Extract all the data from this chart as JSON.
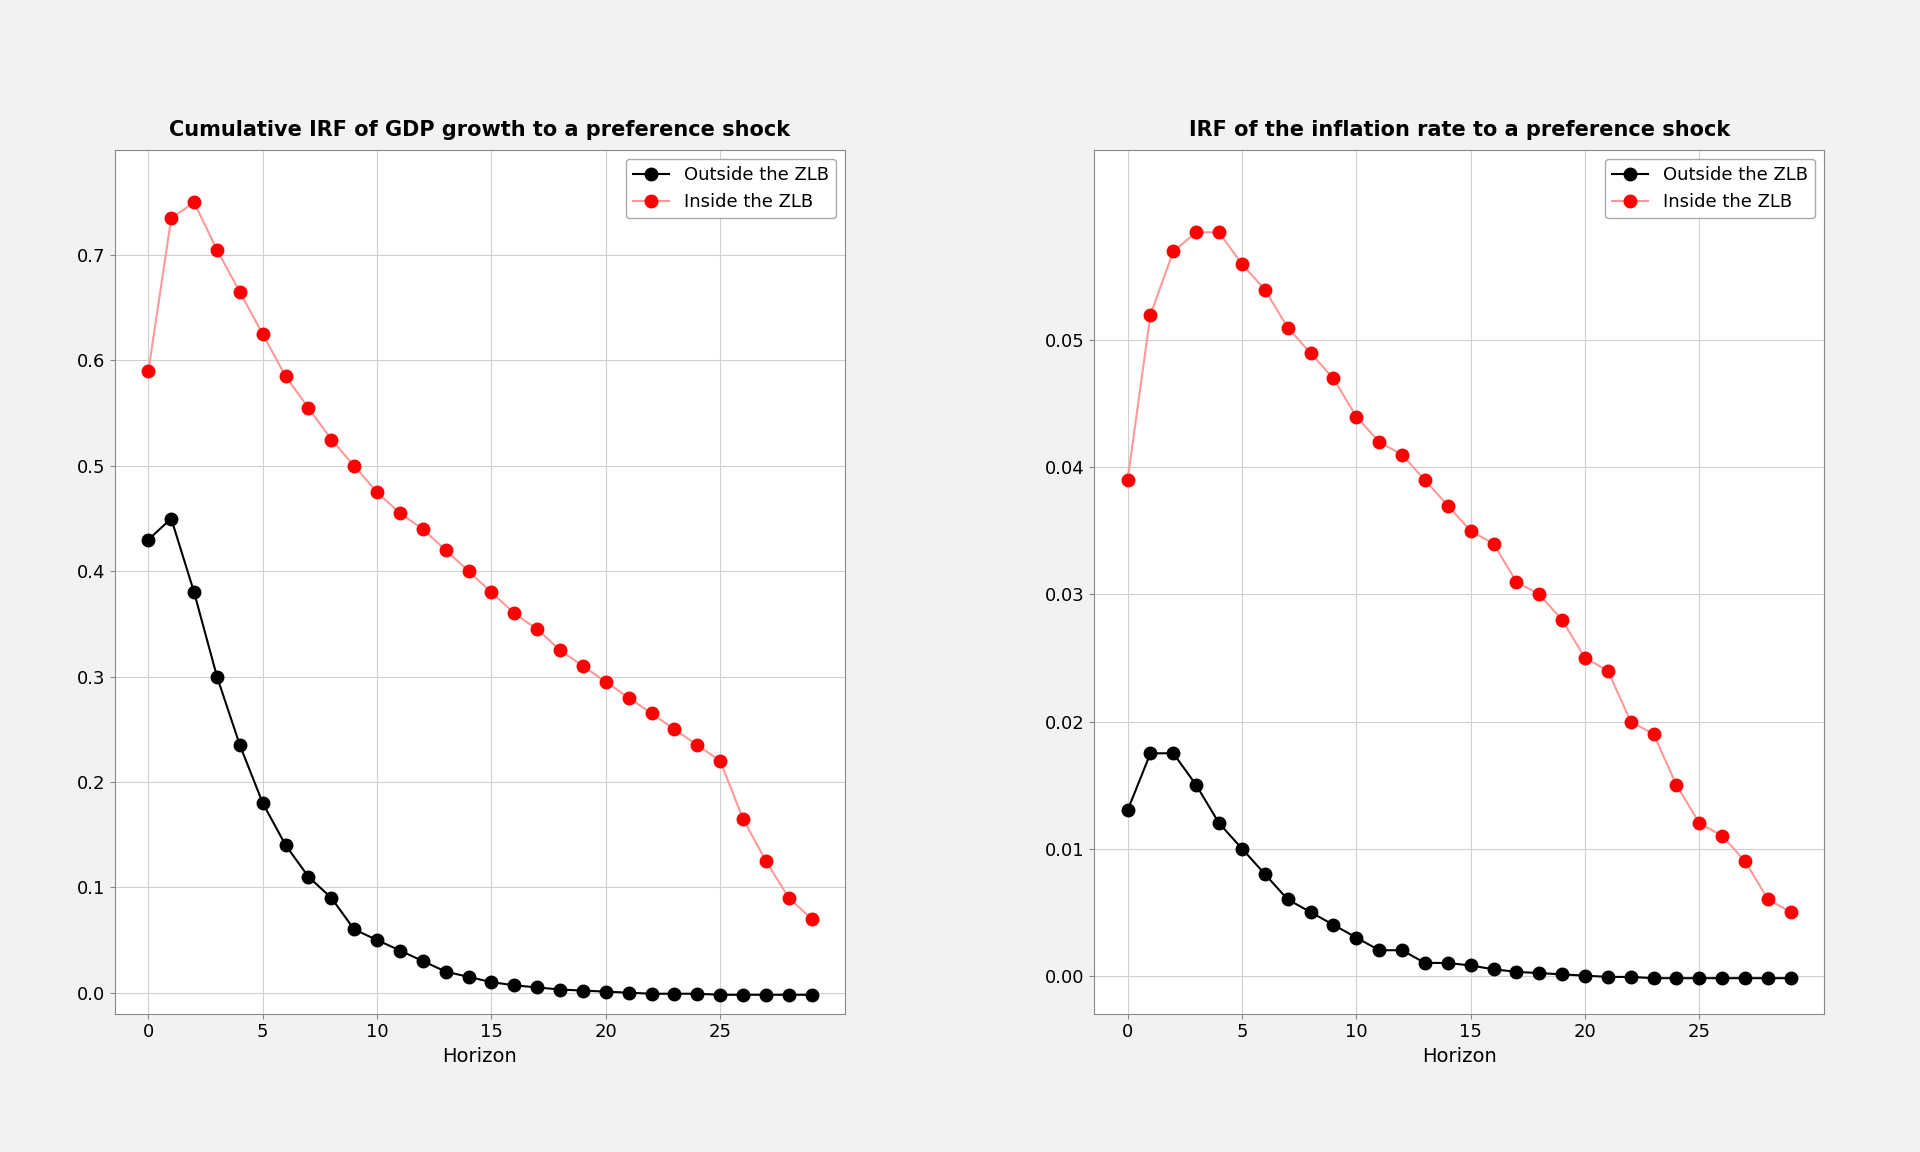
{
  "left_title": "Cumulative IRF of GDP growth to a preference shock",
  "right_title": "IRF of the inflation rate to a preference shock",
  "xlabel": "Horizon",
  "horizon": [
    0,
    1,
    2,
    3,
    4,
    5,
    6,
    7,
    8,
    9,
    10,
    11,
    12,
    13,
    14,
    15,
    16,
    17,
    18,
    19,
    20,
    21,
    22,
    23,
    24,
    25,
    26,
    27,
    28,
    29
  ],
  "left_outside": [
    0.43,
    0.45,
    0.38,
    0.3,
    0.235,
    0.18,
    0.14,
    0.11,
    0.09,
    0.06,
    0.05,
    0.04,
    0.03,
    0.02,
    0.015,
    0.01,
    0.007,
    0.005,
    0.003,
    0.002,
    0.001,
    0.0,
    -0.001,
    -0.001,
    -0.001,
    -0.002,
    -0.002,
    -0.002,
    -0.002,
    -0.002
  ],
  "left_inside": [
    0.59,
    0.735,
    0.75,
    0.705,
    0.665,
    0.625,
    0.585,
    0.555,
    0.525,
    0.5,
    0.475,
    0.455,
    0.44,
    0.42,
    0.4,
    0.38,
    0.36,
    0.345,
    0.325,
    0.31,
    0.295,
    0.28,
    0.265,
    0.25,
    0.235,
    0.22,
    0.165,
    0.125,
    0.09,
    0.07
  ],
  "right_outside": [
    0.013,
    0.0175,
    0.0175,
    0.015,
    0.012,
    0.01,
    0.008,
    0.006,
    0.005,
    0.004,
    0.003,
    0.002,
    0.002,
    0.001,
    0.001,
    0.0008,
    0.0005,
    0.0003,
    0.0002,
    0.0001,
    0.0,
    -0.0001,
    -0.0001,
    -0.0002,
    -0.0002,
    -0.0002,
    -0.0002,
    -0.0002,
    -0.0002,
    -0.0002
  ],
  "right_inside": [
    0.039,
    0.052,
    0.057,
    0.0585,
    0.0585,
    0.056,
    0.054,
    0.051,
    0.049,
    0.047,
    0.044,
    0.042,
    0.041,
    0.039,
    0.037,
    0.035,
    0.034,
    0.031,
    0.03,
    0.028,
    0.025,
    0.024,
    0.02,
    0.019,
    0.015,
    0.012,
    0.011,
    0.009,
    0.006,
    0.005
  ],
  "outside_color": "#000000",
  "inside_dot_color": "#FF0000",
  "inside_line_color": "#FF9999",
  "legend_outside": "Outside the ZLB",
  "legend_inside": "Inside the ZLB",
  "left_ylim": [
    -0.02,
    0.8
  ],
  "right_ylim": [
    -0.003,
    0.065
  ],
  "left_yticks": [
    0.0,
    0.1,
    0.2,
    0.3,
    0.4,
    0.5,
    0.6,
    0.7
  ],
  "right_yticks": [
    0.0,
    0.01,
    0.02,
    0.03,
    0.04,
    0.05
  ],
  "xticks": [
    0,
    5,
    10,
    15,
    20,
    25
  ],
  "fig_facecolor": "#f2f2f2",
  "ax_facecolor": "#ffffff",
  "title_fontsize": 15,
  "label_fontsize": 14,
  "tick_fontsize": 13,
  "legend_fontsize": 13,
  "marker_size": 9,
  "line_width": 1.5,
  "grid_color": "#d0d0d0",
  "spine_color": "#888888"
}
